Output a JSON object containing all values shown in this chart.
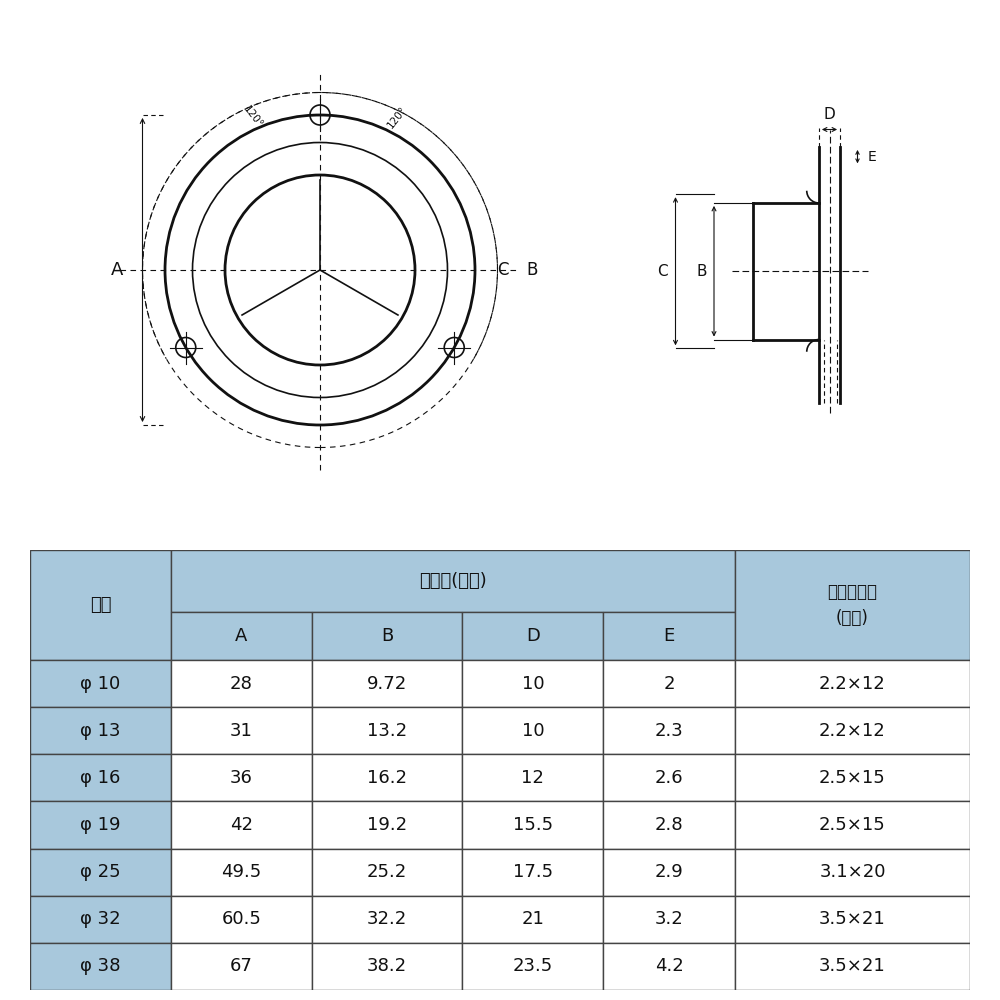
{
  "background_color": "#ffffff",
  "table_header_color": "#a8c8dc",
  "table_border_color": "#444444",
  "table_text_color": "#111111",
  "diagram_color": "#111111",
  "rows": [
    [
      "φ 10",
      "28",
      "9.72",
      "10",
      "2",
      "2.2×12"
    ],
    [
      "φ 13",
      "31",
      "13.2",
      "10",
      "2.3",
      "2.2×12"
    ],
    [
      "φ 16",
      "36",
      "16.2",
      "12",
      "2.6",
      "2.5×15"
    ],
    [
      "φ 19",
      "42",
      "19.2",
      "15.5",
      "2.8",
      "2.5×15"
    ],
    [
      "φ 25",
      "49.5",
      "25.2",
      "17.5",
      "2.9",
      "3.1×20"
    ],
    [
      "φ 32",
      "60.5",
      "32.2",
      "21",
      "3.2",
      "3.5×21"
    ],
    [
      "φ 38",
      "67",
      "38.2",
      "23.5",
      "4.2",
      "3.5×21"
    ]
  ]
}
